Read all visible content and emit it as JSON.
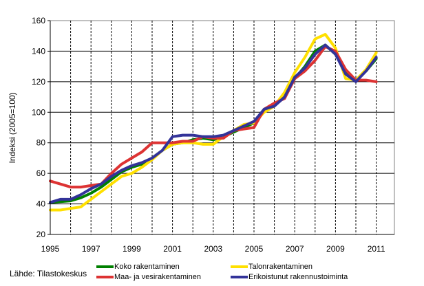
{
  "chart_data": {
    "type": "line",
    "title": "",
    "xlabel": "",
    "ylabel": "Indeksi (2005=100)",
    "xlim": [
      1995,
      2011.9
    ],
    "ylim": [
      20,
      160
    ],
    "yticks": [
      20,
      40,
      60,
      80,
      100,
      120,
      140,
      160
    ],
    "xtick_labels": [
      "1995",
      "1997",
      "1999",
      "2001",
      "2003",
      "2005",
      "2007",
      "2009",
      "2011"
    ],
    "grid": "horizontal solid, yearly vertical dashed",
    "legend_position": "bottom",
    "x": [
      1995,
      1995.5,
      1996,
      1996.5,
      1997,
      1997.5,
      1998,
      1998.5,
      1999,
      1999.5,
      2000,
      2000.5,
      2001,
      2001.5,
      2002,
      2002.5,
      2003,
      2003.5,
      2004,
      2004.5,
      2005,
      2005.5,
      2006,
      2006.5,
      2007,
      2007.5,
      2008,
      2008.5,
      2009,
      2009.5,
      2010,
      2010.5,
      2011
    ],
    "series": [
      {
        "name": "Koko rakentaminen",
        "color": "#008000",
        "values": [
          41,
          41.5,
          42,
          44,
          47,
          51,
          56,
          61,
          64,
          66,
          70,
          75,
          79,
          80,
          82,
          83,
          82,
          84,
          87,
          90,
          93,
          102,
          105,
          110,
          122,
          130,
          140,
          144,
          138,
          126,
          121,
          127,
          135
        ]
      },
      {
        "name": "Talonrakentaminen",
        "color": "#FFE000",
        "values": [
          36,
          36,
          37,
          38,
          43,
          48,
          53,
          58,
          60,
          64,
          69,
          75,
          79,
          80,
          80,
          79,
          79,
          84,
          88,
          92,
          93,
          100,
          104,
          113,
          126,
          136,
          148,
          151,
          142,
          122,
          121,
          128,
          139
        ]
      },
      {
        "name": "Maa- ja vesirakentaminen",
        "color": "#DD3333",
        "values": [
          55,
          53,
          51,
          51,
          52,
          53,
          60,
          66,
          70,
          74,
          80,
          80,
          80,
          81,
          81,
          84,
          83,
          83,
          88,
          89,
          90,
          102,
          106,
          109,
          122,
          127,
          134,
          143,
          140,
          128,
          121,
          121,
          120
        ]
      },
      {
        "name": "Erikoistunut rakennustoiminta",
        "color": "#333399",
        "values": [
          41,
          43,
          43,
          46,
          50,
          53,
          58,
          62,
          65,
          67,
          70,
          75,
          84,
          85,
          85,
          84,
          84,
          85,
          88,
          91,
          94,
          102,
          104,
          110,
          123,
          129,
          138,
          144,
          138,
          125,
          120,
          127,
          136
        ]
      }
    ]
  },
  "source": "Lähde: Tilastokeskus"
}
